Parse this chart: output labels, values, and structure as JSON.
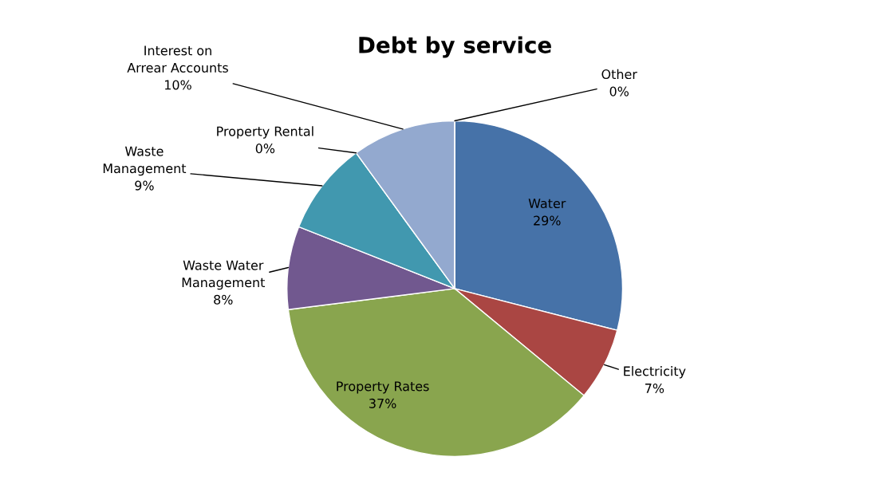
{
  "chart_data": {
    "type": "pie",
    "title": "Debt by service",
    "categories": [
      "Water",
      "Electricity",
      "Property Rates",
      "Waste Water Management",
      "Waste Management",
      "Property Rental",
      "Interest on Arrear Accounts",
      "Other"
    ],
    "values": [
      29,
      7,
      37,
      8,
      9,
      0,
      10,
      0
    ],
    "value_labels": [
      "29%",
      "7%",
      "37%",
      "8%",
      "9%",
      "0%",
      "10%",
      "0%"
    ],
    "colors": [
      "#4672a8",
      "#aa4643",
      "#89a54e",
      "#71588f",
      "#4198af",
      "#db843d",
      "#93a9cf",
      "#d19392"
    ]
  }
}
